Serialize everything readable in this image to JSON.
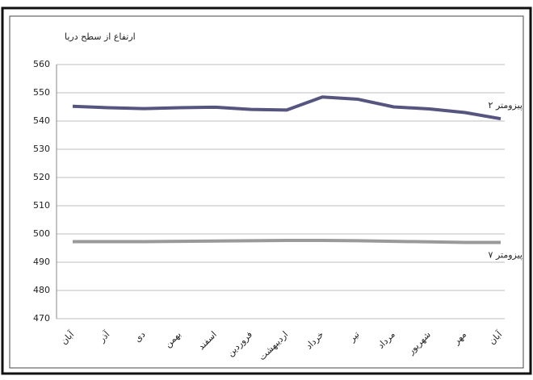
{
  "chart_data": {
    "type": "line",
    "y_label": "ارتفاع از سطح دریا",
    "categories": [
      "آبان",
      "آذر",
      "دی",
      "بهمن",
      "اسفند",
      "فروردین",
      "اردیبهشت",
      "خرداد",
      "تیر",
      "مرداد",
      "شهریور",
      "مهر",
      "آبان"
    ],
    "series": [
      {
        "name": "پیزومتر ۲",
        "color": "#55557f",
        "values": [
          545.2,
          544.7,
          544.4,
          544.7,
          544.9,
          544.1,
          543.9,
          548.5,
          547.7,
          545.0,
          544.3,
          543.0,
          540.8
        ]
      },
      {
        "name": "پیزومتر ۷",
        "color": "#9a9a9a",
        "values": [
          497.3,
          497.3,
          497.3,
          497.4,
          497.5,
          497.6,
          497.7,
          497.7,
          497.6,
          497.4,
          497.2,
          497.0,
          497.0
        ]
      }
    ],
    "ylim": [
      470,
      560
    ],
    "yticks": [
      470,
      480,
      490,
      500,
      510,
      520,
      530,
      540,
      550,
      560
    ],
    "grid": true
  }
}
